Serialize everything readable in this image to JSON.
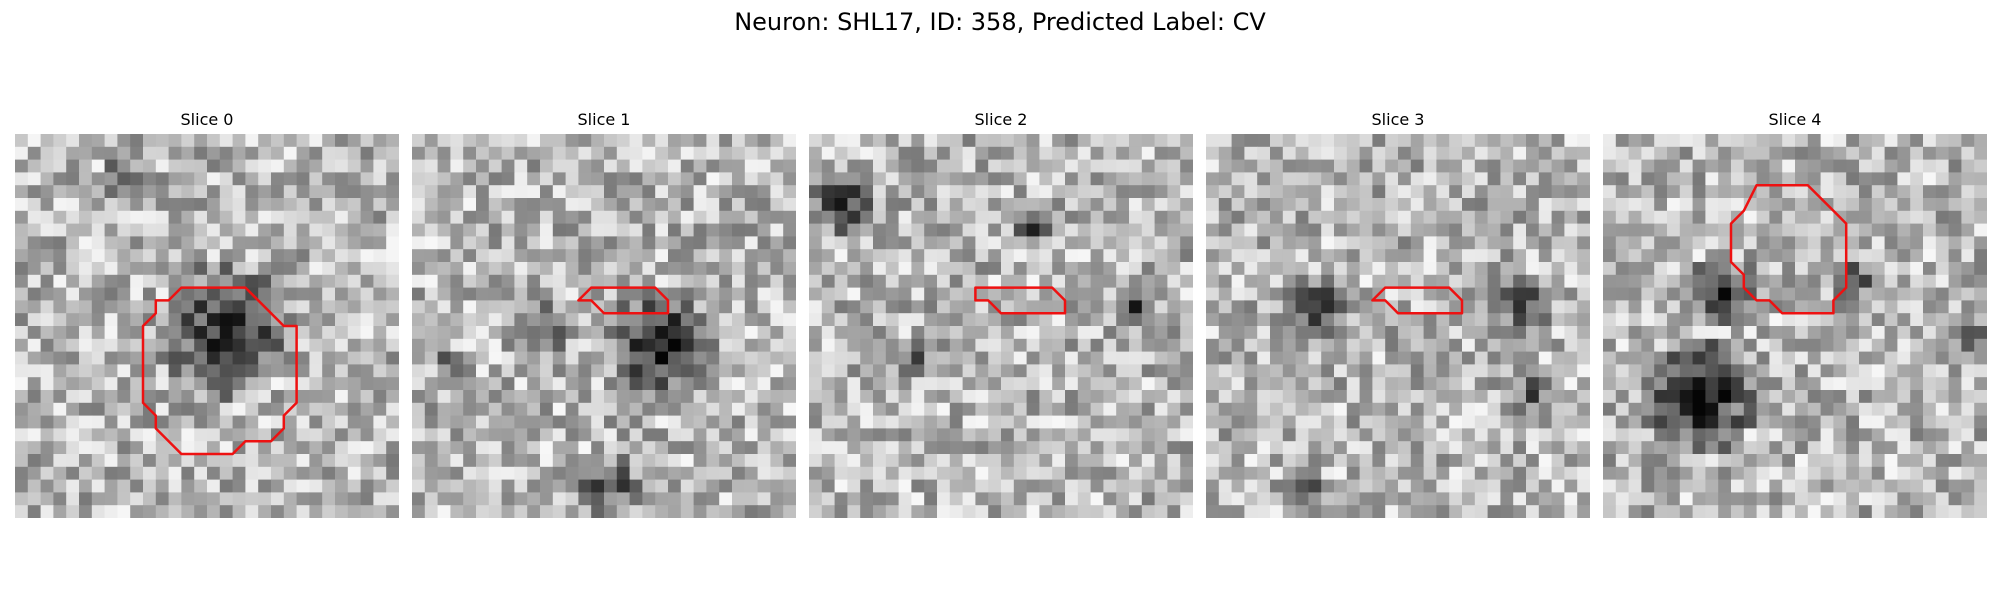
{
  "figure": {
    "title": "Neuron: SHL17, ID: 358, Predicted Label: CV"
  },
  "colors": {
    "contour": "#ee1111",
    "background": "#ffffff"
  },
  "panels": [
    {
      "title": "Slice 0",
      "contour": [
        [
          14,
          12
        ],
        [
          18,
          12
        ],
        [
          21,
          15
        ],
        [
          22,
          15
        ],
        [
          22,
          21
        ],
        [
          21,
          22
        ],
        [
          21,
          23
        ],
        [
          20,
          24
        ],
        [
          18,
          24
        ],
        [
          17,
          25
        ],
        [
          13,
          25
        ],
        [
          11,
          23
        ],
        [
          11,
          22
        ],
        [
          10,
          21
        ],
        [
          10,
          15
        ],
        [
          11,
          14
        ],
        [
          11,
          13
        ],
        [
          12,
          13
        ],
        [
          13,
          12
        ]
      ]
    },
    {
      "title": "Slice 1",
      "contour": [
        [
          14,
          12
        ],
        [
          19,
          12
        ],
        [
          20,
          13
        ],
        [
          20,
          14
        ],
        [
          19,
          14
        ],
        [
          15,
          14
        ],
        [
          14,
          13
        ],
        [
          13,
          13
        ]
      ]
    },
    {
      "title": "Slice 2",
      "contour": [
        [
          13,
          12
        ],
        [
          19,
          12
        ],
        [
          20,
          13
        ],
        [
          20,
          14
        ],
        [
          19,
          14
        ],
        [
          15,
          14
        ],
        [
          14,
          13
        ],
        [
          13,
          13
        ]
      ]
    },
    {
      "title": "Slice 3",
      "contour": [
        [
          14,
          12
        ],
        [
          19,
          12
        ],
        [
          20,
          13
        ],
        [
          20,
          14
        ],
        [
          19,
          14
        ],
        [
          15,
          14
        ],
        [
          14,
          13
        ],
        [
          13,
          13
        ]
      ]
    },
    {
      "title": "Slice 4",
      "contour": [
        [
          12,
          4
        ],
        [
          16,
          4
        ],
        [
          18,
          6
        ],
        [
          19,
          7
        ],
        [
          19,
          12
        ],
        [
          18,
          13
        ],
        [
          18,
          14
        ],
        [
          14,
          14
        ],
        [
          13,
          13
        ],
        [
          12,
          13
        ],
        [
          11,
          12
        ],
        [
          11,
          11
        ],
        [
          10,
          10
        ],
        [
          10,
          7
        ],
        [
          11,
          6
        ]
      ]
    }
  ]
}
